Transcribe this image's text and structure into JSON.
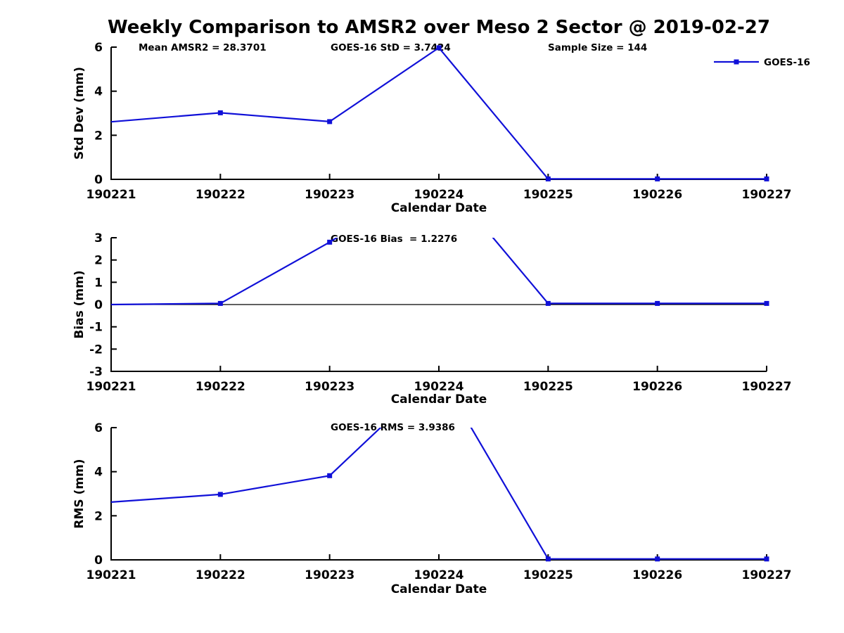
{
  "title": "Weekly Comparison to AMSR2 over Meso 2 Sector @ 2019-02-27",
  "legend": {
    "label": "GOES-16",
    "position": "top-right",
    "marker": "filled-square"
  },
  "colors": {
    "line": "#1010d8",
    "axis": "#000000",
    "text": "#000000",
    "background": "#ffffff"
  },
  "stats": {
    "mean_amsr2": "28.3701",
    "goes16_std": "3.7424",
    "sample_size": "144",
    "goes16_bias": "1.2276",
    "goes16_rms": "3.9386"
  },
  "axis": {
    "xlabel": "Calendar Date",
    "categories": [
      "190221",
      "190222",
      "190223",
      "190224",
      "190225",
      "190226",
      "190227"
    ]
  },
  "chart_data": [
    {
      "type": "line",
      "name": "std-dev",
      "ylabel": "Std Dev (mm)",
      "ylim": [
        0,
        6
      ],
      "yticks": [
        0,
        2,
        4,
        6
      ],
      "grid": false,
      "series": [
        {
          "name": "GOES-16",
          "values": [
            2.61,
            3.02,
            2.62,
            5.97,
            0.02,
            0.02,
            0.02
          ]
        }
      ],
      "annotations": [
        "Mean AMSR2 = 28.3701",
        "GOES-16 StD = 3.7424",
        "Sample Size = 144"
      ]
    },
    {
      "type": "line",
      "name": "bias",
      "ylabel": "Bias (mm)",
      "ylim": [
        -3,
        3
      ],
      "yticks": [
        -3,
        -2,
        -1,
        0,
        1,
        2,
        3
      ],
      "grid": false,
      "zero_line": true,
      "clipped_points": [
        "190224"
      ],
      "series": [
        {
          "name": "GOES-16",
          "values": [
            0.0,
            0.05,
            2.8,
            5.9,
            0.05,
            0.05,
            0.05
          ]
        }
      ],
      "annotations": [
        "GOES-16 Bias  = 1.2276"
      ]
    },
    {
      "type": "line",
      "name": "rms",
      "ylabel": "RMS (mm)",
      "ylim": [
        0,
        6
      ],
      "yticks": [
        0,
        2,
        4,
        6
      ],
      "grid": false,
      "clipped_points": [
        "190224"
      ],
      "series": [
        {
          "name": "GOES-16",
          "values": [
            2.62,
            2.97,
            3.82,
            8.5,
            0.04,
            0.04,
            0.04
          ]
        }
      ],
      "annotations": [
        "GOES-16 RMS = 3.9386"
      ]
    }
  ]
}
